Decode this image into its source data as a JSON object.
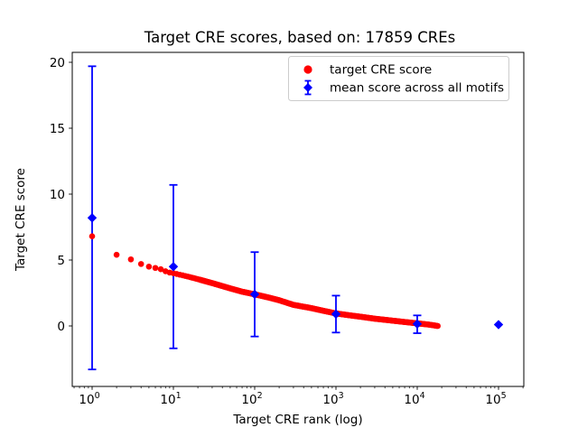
{
  "chart_data": {
    "type": "scatter",
    "title": "Target CRE scores, based on: 17859 CREs",
    "xlabel": "Target CRE rank (log)",
    "ylabel": "Target CRE score",
    "x_scale": "log",
    "x_tick_labels": [
      "10^0",
      "10^1",
      "10^2",
      "10^3",
      "10^4",
      "10^5"
    ],
    "y_ticks": [
      0,
      5,
      10,
      15,
      20
    ],
    "xlim_log10": [
      -0.24,
      5.31
    ],
    "ylim": [
      -4.6,
      20.8
    ],
    "grid": false,
    "legend_position": "upper right",
    "n_cres": 17859,
    "colors": {
      "target": "#ff0000",
      "mean": "#0000ff",
      "legend_border": "#cccccc",
      "axis": "#000000"
    },
    "series": [
      {
        "name": "target CRE score",
        "marker": "circle",
        "color": "#ff0000",
        "max_rank": 17859,
        "points_rank_score": [
          [
            1,
            6.8
          ],
          [
            2,
            5.4
          ],
          [
            3,
            5.05
          ],
          [
            4,
            4.7
          ],
          [
            5,
            4.5
          ],
          [
            6,
            4.4
          ],
          [
            7,
            4.3
          ],
          [
            8,
            4.15
          ],
          [
            9,
            4.05
          ],
          [
            10,
            4.0
          ],
          [
            15,
            3.75
          ],
          [
            20,
            3.55
          ],
          [
            30,
            3.25
          ],
          [
            50,
            2.85
          ],
          [
            70,
            2.6
          ],
          [
            100,
            2.4
          ],
          [
            150,
            2.15
          ],
          [
            200,
            1.95
          ],
          [
            300,
            1.6
          ],
          [
            500,
            1.35
          ],
          [
            700,
            1.15
          ],
          [
            1000,
            0.95
          ],
          [
            1500,
            0.8
          ],
          [
            2000,
            0.7
          ],
          [
            3000,
            0.55
          ],
          [
            5000,
            0.4
          ],
          [
            7000,
            0.3
          ],
          [
            10000,
            0.2
          ],
          [
            14000,
            0.1
          ],
          [
            17859,
            0.0
          ]
        ]
      },
      {
        "name": "mean score across all motifs",
        "marker": "diamond",
        "color": "#0000ff",
        "points": [
          {
            "rank": 1,
            "mean": 8.2,
            "lo": -3.3,
            "hi": 19.7
          },
          {
            "rank": 10,
            "mean": 4.5,
            "lo": -1.7,
            "hi": 10.7
          },
          {
            "rank": 100,
            "mean": 2.4,
            "lo": -0.8,
            "hi": 5.6
          },
          {
            "rank": 1000,
            "mean": 0.9,
            "lo": -0.5,
            "hi": 2.3
          },
          {
            "rank": 10000,
            "mean": 0.15,
            "lo": -0.55,
            "hi": 0.8
          },
          {
            "rank": 100000,
            "mean": 0.1,
            "lo": 0.1,
            "hi": 0.1
          }
        ]
      }
    ]
  }
}
